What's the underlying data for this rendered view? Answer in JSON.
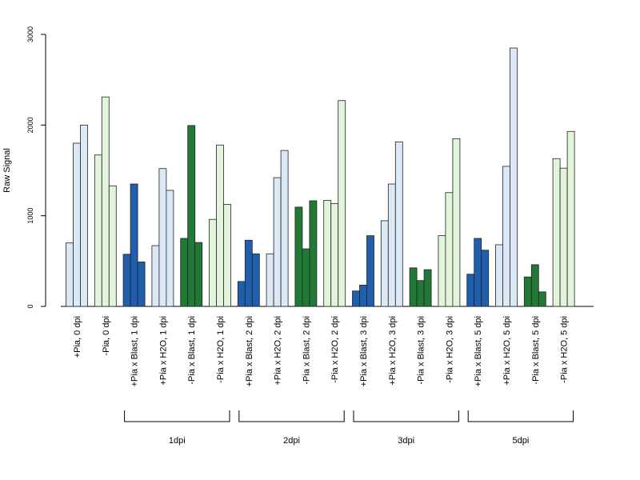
{
  "chart_data": {
    "type": "bar",
    "title": "",
    "xlabel": "",
    "ylabel": "Raw Signal",
    "ylim": [
      0,
      3000
    ],
    "yticks": [
      0,
      1000,
      2000,
      3000
    ],
    "grid": false,
    "colors": {
      "plus_h2o": "#dbe8f6",
      "minus_h2o": "#e2f4d9",
      "plus_blast": "#1f5fad",
      "minus_blast": "#207a35"
    },
    "categories": [
      "+Pia, 0 dpi",
      "-Pia, 0 dpi",
      "+Pia x Blast, 1 dpi",
      "+Pia x H2O, 1 dpi",
      "-Pia x Blast, 1 dpi",
      "-Pia x H2O, 1 dpi",
      "+Pia x Blast, 2 dpi",
      "+Pia x H2O, 2 dpi",
      "-Pia x Blast, 2 dpi",
      "-Pia x H2O, 2 dpi",
      "+Pia x Blast, 3 dpi",
      "+Pia x H2O, 3 dpi",
      "-Pia x Blast, 3 dpi",
      "-Pia x H2O, 3 dpi",
      "+Pia x Blast, 5 dpi",
      "+Pia x H2O, 5 dpi",
      "-Pia x Blast, 5 dpi",
      "-Pia x H2O, 5 dpi"
    ],
    "category_color_keys": [
      "plus_h2o",
      "minus_h2o",
      "plus_blast",
      "plus_h2o",
      "minus_blast",
      "minus_h2o",
      "plus_blast",
      "plus_h2o",
      "minus_blast",
      "minus_h2o",
      "plus_blast",
      "plus_h2o",
      "minus_blast",
      "minus_h2o",
      "plus_blast",
      "plus_h2o",
      "minus_blast",
      "minus_h2o"
    ],
    "values": [
      [
        700,
        1800,
        2000
      ],
      [
        1670,
        2310,
        1330
      ],
      [
        575,
        1350,
        490
      ],
      [
        670,
        1520,
        1280
      ],
      [
        750,
        1995,
        705
      ],
      [
        960,
        1780,
        1125
      ],
      [
        275,
        730,
        580
      ],
      [
        580,
        1420,
        1720
      ],
      [
        1095,
        635,
        1165
      ],
      [
        1170,
        1135,
        2270
      ],
      [
        170,
        235,
        780
      ],
      [
        945,
        1350,
        1815
      ],
      [
        425,
        285,
        405
      ],
      [
        780,
        1255,
        1850
      ],
      [
        355,
        750,
        620
      ],
      [
        680,
        1545,
        2850
      ],
      [
        325,
        460,
        160
      ],
      [
        1630,
        1525,
        1930
      ]
    ],
    "groups": [
      {
        "label": "1dpi",
        "first": 2,
        "last": 5
      },
      {
        "label": "2dpi",
        "first": 6,
        "last": 9
      },
      {
        "label": "3dpi",
        "first": 10,
        "last": 13
      },
      {
        "label": "5dpi",
        "first": 14,
        "last": 17
      }
    ]
  }
}
